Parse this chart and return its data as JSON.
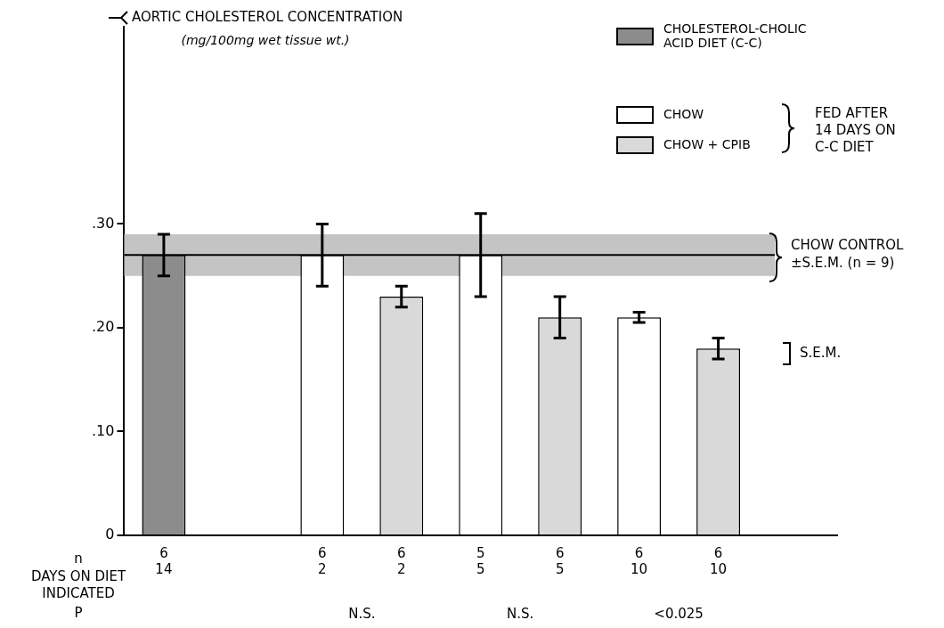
{
  "chart_data": {
    "type": "bar",
    "ylabel": "AORTIC CHOLESTEROL CONCENTRATION\n(mg/100mg wet tissue wt.)",
    "categories": [
      "6\n14",
      null,
      "6\n2",
      "6\n2",
      "5\n5",
      "6\n5",
      "6\n10",
      "6\n10",
      null
    ],
    "series": [
      {
        "name": "CHOLESTEROL-CHOLIC\nACID DIET (C-C)",
        "color": "#8c8c8c",
        "values": [
          0.27,
          null,
          null,
          null,
          null,
          null,
          null,
          null,
          null
        ],
        "errors": [
          0.02,
          null,
          null,
          null,
          null,
          null,
          null,
          null,
          null
        ]
      },
      {
        "name": "CHOW",
        "color": "#ffffff",
        "values": [
          null,
          null,
          0.27,
          null,
          0.27,
          null,
          0.21,
          null,
          null
        ],
        "errors": [
          null,
          null,
          0.03,
          null,
          0.04,
          null,
          0.005,
          null,
          null
        ]
      },
      {
        "name": "CHOW + CPIB",
        "color": "#d9d9d9",
        "values": [
          null,
          null,
          null,
          0.23,
          null,
          0.21,
          null,
          0.18,
          null
        ],
        "errors": [
          null,
          null,
          null,
          0.01,
          null,
          0.02,
          null,
          0.01,
          null
        ]
      }
    ],
    "ylim": [
      0,
      0.49
    ],
    "yticks": [
      0,
      {
        "value": 0.1,
        "label": ".10"
      },
      {
        "value": 0.2,
        "label": ".20"
      },
      {
        "value": 0.3,
        "label": ".30"
      }
    ],
    "ref_lines": [
      {
        "axis": "y",
        "value": 0.27,
        "color": "#000000"
      }
    ],
    "bands": [
      {
        "axis": "y",
        "from": 0.25,
        "to": 0.29,
        "label": "CHOW CONTROL\n±S.E.M. (n = 9)",
        "color": "#c4c4c4"
      }
    ],
    "annotations": [
      "FED AFTER\n14 DAYS ON\nC-C DIET",
      "S.E.M.",
      "n",
      "DAYS ON DIET\nINDICATED",
      "P",
      "N.S.",
      "N.S.",
      "<0.025"
    ],
    "legend": "top right",
    "grid": false
  }
}
